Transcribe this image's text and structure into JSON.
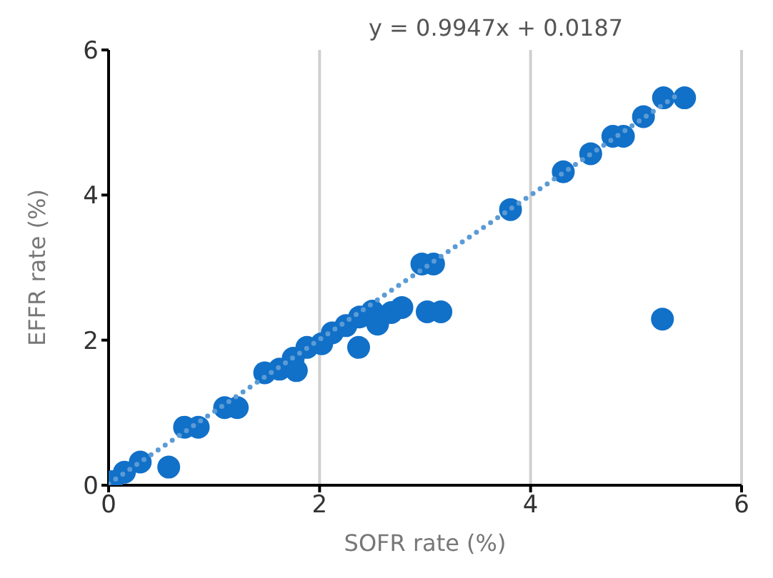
{
  "chart_data": {
    "type": "scatter",
    "xlabel": "SOFR  rate (%)",
    "ylabel": "EFFR rate (%)",
    "annotations": [
      "y = 0.9947x  + 0.0187"
    ],
    "xlim": [
      0,
      6
    ],
    "ylim": [
      0,
      6
    ],
    "xticks": [
      0,
      2,
      4,
      6
    ],
    "yticks": [
      0,
      2,
      4,
      6
    ],
    "grid": "x",
    "marker": "circle",
    "series": [
      {
        "type": "scatter",
        "color": "#1170c8",
        "x": [
          0.03,
          0.15,
          0.3,
          0.57,
          0.72,
          0.85,
          1.1,
          1.22,
          1.48,
          1.62,
          1.78,
          1.75,
          1.88,
          2.02,
          2.12,
          2.25,
          2.38,
          2.5,
          2.55,
          2.68,
          2.78,
          2.37,
          3.02,
          3.15,
          2.97,
          3.08,
          3.81,
          4.31,
          4.57,
          4.78,
          4.88,
          5.07,
          5.26,
          5.46,
          5.25
        ],
        "values": [
          0.05,
          0.18,
          0.32,
          0.25,
          0.8,
          0.8,
          1.07,
          1.07,
          1.55,
          1.6,
          1.58,
          1.75,
          1.9,
          1.95,
          2.1,
          2.2,
          2.32,
          2.4,
          2.22,
          2.38,
          2.45,
          1.9,
          2.39,
          2.39,
          3.05,
          3.05,
          3.8,
          4.32,
          4.57,
          4.81,
          4.81,
          5.08,
          5.34,
          5.34,
          2.29
        ]
      },
      {
        "type": "line",
        "color": "#5b9bd5",
        "line_style": "dotted",
        "marker": "none",
        "x": [
          0,
          5.4
        ],
        "values": [
          0.02,
          5.39
        ]
      }
    ]
  }
}
